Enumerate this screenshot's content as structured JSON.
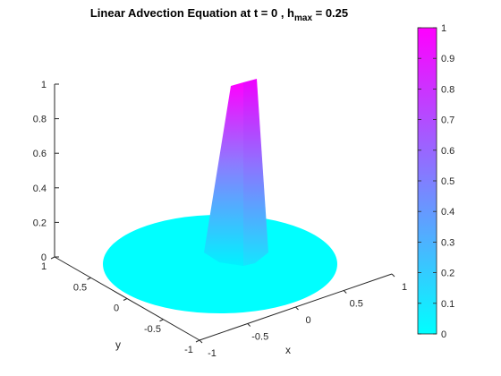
{
  "chart_data": {
    "type": "surface",
    "title": "Linear Advection Equation at t = 0 , h",
    "title_subscript": "max",
    "title_suffix": " = 0.25",
    "xlabel": "x",
    "ylabel": "y",
    "xticks": [
      "-1",
      "-0.5",
      "0",
      "0.5",
      "1"
    ],
    "yticks": [
      "-1",
      "-0.5",
      "0",
      "0.5",
      "1"
    ],
    "zticks": [
      "0",
      "0.2",
      "0.4",
      "0.6",
      "0.8",
      "1"
    ],
    "xlim": [
      -1,
      1
    ],
    "ylim": [
      -1,
      1
    ],
    "zlim": [
      0,
      1
    ],
    "domain": "unit disk",
    "peak": {
      "x": -0.5,
      "y": 0,
      "z": 1
    },
    "base_value": 0,
    "colormap": "cool",
    "colors": {
      "low": "#00ffff",
      "high": "#ff00ff"
    },
    "colorbar": {
      "ticks": [
        "0",
        "0.1",
        "0.2",
        "0.3",
        "0.4",
        "0.5",
        "0.6",
        "0.7",
        "0.8",
        "0.9",
        "1"
      ],
      "range": [
        0,
        1
      ]
    }
  }
}
